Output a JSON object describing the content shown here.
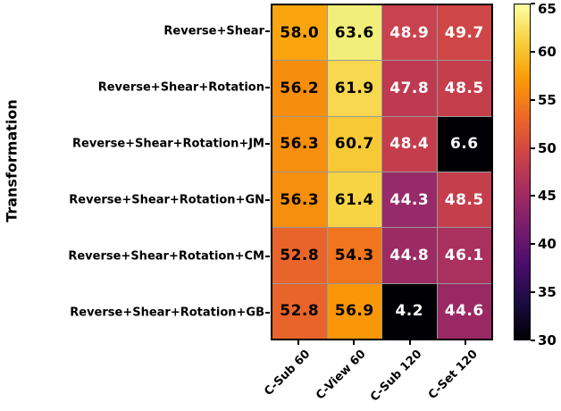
{
  "figure": {
    "background": "#ffffff",
    "text_color": "#000000",
    "grid_line_color": "#999999"
  },
  "chart_data": {
    "type": "heatmap",
    "title": "",
    "xlabel": "",
    "ylabel": "Transformation",
    "colormap": "inferno",
    "rows": [
      "Reverse+Shear",
      "Reverse+Shear+Rotation",
      "Reverse+Shear+Rotation+JM",
      "Reverse+Shear+Rotation+GN",
      "Reverse+Shear+Rotation+CM",
      "Reverse+Shear+Rotation+GB"
    ],
    "columns": [
      "C-Sub 60",
      "C-View 60",
      "C-Sub 120",
      "C-Set 120"
    ],
    "values": [
      [
        58.0,
        63.6,
        48.9,
        49.7
      ],
      [
        56.2,
        61.9,
        47.8,
        48.5
      ],
      [
        56.3,
        60.7,
        48.4,
        6.6
      ],
      [
        56.3,
        61.4,
        44.3,
        48.5
      ],
      [
        52.8,
        54.3,
        44.8,
        46.1
      ],
      [
        52.8,
        56.9,
        4.2,
        44.6
      ]
    ],
    "cell_colors": [
      [
        "#fba50e",
        "#f1ee7a",
        "#c8434f",
        "#cf4646"
      ],
      [
        "#f78d0d",
        "#f7d84e",
        "#bd3a51",
        "#c53e4c"
      ],
      [
        "#f78f0e",
        "#f8c936",
        "#c43d4d",
        "#000004"
      ],
      [
        "#f78f0e",
        "#f7d444",
        "#972a68",
        "#c53e4c"
      ],
      [
        "#e9642a",
        "#f0751d",
        "#9c2a63",
        "#aa305e"
      ],
      [
        "#e9642a",
        "#fa9709",
        "#000004",
        "#9a2863"
      ]
    ],
    "cell_text_colors": [
      [
        "#000000",
        "#000000",
        "#ffffff",
        "#ffffff"
      ],
      [
        "#000000",
        "#000000",
        "#ffffff",
        "#ffffff"
      ],
      [
        "#000000",
        "#000000",
        "#ffffff",
        "#ffffff"
      ],
      [
        "#000000",
        "#000000",
        "#ffffff",
        "#ffffff"
      ],
      [
        "#000000",
        "#000000",
        "#ffffff",
        "#ffffff"
      ],
      [
        "#000000",
        "#000000",
        "#ffffff",
        "#ffffff"
      ]
    ],
    "colorbar": {
      "min": 30,
      "max": 65,
      "ticks": [
        30,
        35,
        40,
        45,
        50,
        55,
        60,
        65
      ],
      "gradient_stops_bottom_to_top": [
        "#000004",
        "#1b0c41",
        "#4a0c6b",
        "#781c6d",
        "#a52c60",
        "#cf4446",
        "#ed6925",
        "#fb9b06",
        "#f7d03c",
        "#fcffa4"
      ]
    }
  }
}
